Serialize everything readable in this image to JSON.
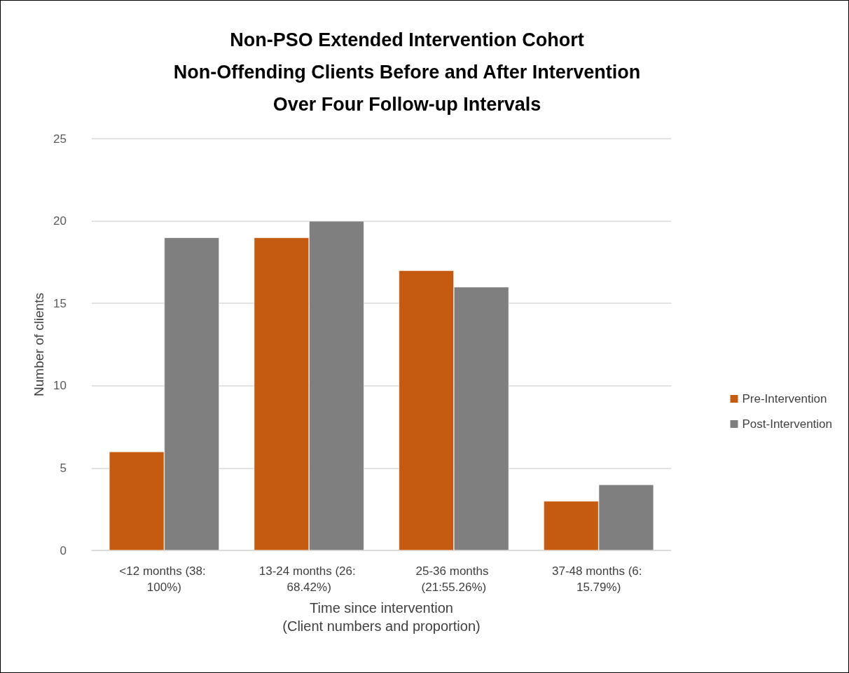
{
  "chart_data": {
    "type": "bar",
    "title": "Non-PSO Extended Intervention Cohort\nNon-Offending Clients Before and After Intervention\nOver Four Follow-up Intervals",
    "xlabel": "Time since intervention\n(Client numbers and proportion)",
    "ylabel": "Number of clients",
    "categories": [
      "<12 months (38: 100%)",
      "13-24 months (26: 68.42%)",
      "25-36 months (21:55.26%)",
      "37-48 months (6: 15.79%)"
    ],
    "series": [
      {
        "name": "Pre-Intervention",
        "color": "#c55a11",
        "values": [
          6,
          19,
          17,
          3
        ]
      },
      {
        "name": "Post-Intervention",
        "color": "#7f7f7f",
        "values": [
          19,
          20,
          16,
          4
        ]
      }
    ],
    "ylim": [
      0,
      25
    ],
    "yticks": [
      0,
      5,
      10,
      15,
      20,
      25
    ],
    "grid": "y",
    "legend": "right"
  }
}
